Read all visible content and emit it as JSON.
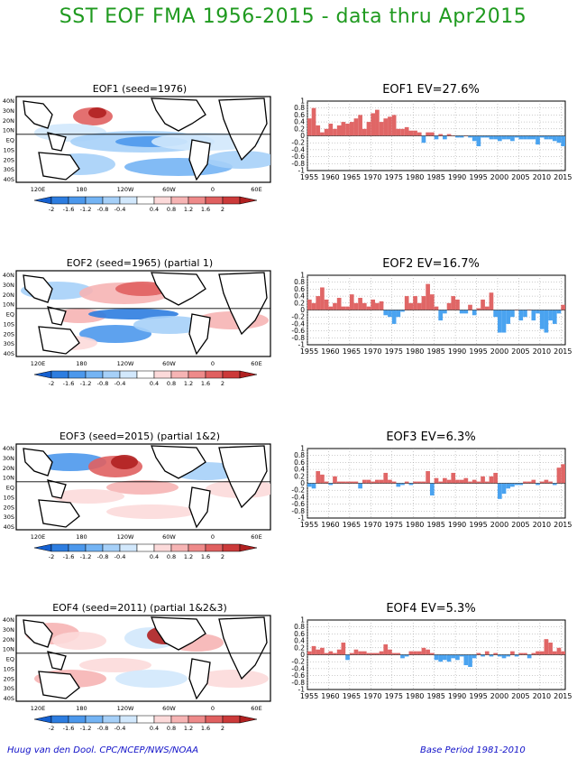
{
  "page": {
    "title": "SST EOF FMA 1956-2015 - data thru Apr2015",
    "footer_left": "Huug van den Dool. CPC/NCEP/NWS/NOAA",
    "footer_right": "Base Period 1981-2010",
    "title_color": "#1f9a1f",
    "footer_color": "#1010c8"
  },
  "maps": [
    {
      "title": "EOF1   (seed=1976)"
    },
    {
      "title": "EOF2   (seed=1965)  (partial  1)"
    },
    {
      "title": "EOF3   (seed=2015)  (partial  1&2)"
    },
    {
      "title": "EOF4   (seed=2011)  (partial  1&2&3)"
    }
  ],
  "map_axes": {
    "lat_labels": [
      "40N",
      "30N",
      "20N",
      "10N",
      "EQ",
      "10S",
      "20S",
      "30S",
      "40S"
    ],
    "lon_labels": [
      "120E",
      "180",
      "120W",
      "60W",
      "0",
      "60E"
    ]
  },
  "colorbar": {
    "labels": [
      "-2",
      "-1.6",
      "-1.2",
      "-0.8",
      "-0.4",
      "0.4",
      "0.8",
      "1.2",
      "1.6",
      "2"
    ],
    "colors": [
      "#1560d0",
      "#2d7de0",
      "#4c98ec",
      "#74b4f4",
      "#a6d0f8",
      "#d2e8fc",
      "#ffffff",
      "#fcdada",
      "#f6b4b4",
      "#ee8a8a",
      "#e06060",
      "#cc3a3a",
      "#b02020"
    ]
  },
  "chart_data": [
    {
      "type": "bar",
      "title": "EOF1   EV=27.6%",
      "x": [
        1955,
        1956,
        1957,
        1958,
        1959,
        1960,
        1961,
        1962,
        1963,
        1964,
        1965,
        1966,
        1967,
        1968,
        1969,
        1970,
        1971,
        1972,
        1973,
        1974,
        1975,
        1976,
        1977,
        1978,
        1979,
        1980,
        1981,
        1982,
        1983,
        1984,
        1985,
        1986,
        1987,
        1988,
        1989,
        1990,
        1991,
        1992,
        1993,
        1994,
        1995,
        1996,
        1997,
        1998,
        1999,
        2000,
        2001,
        2002,
        2003,
        2004,
        2005,
        2006,
        2007,
        2008,
        2009,
        2010,
        2011,
        2012,
        2013,
        2014,
        2015
      ],
      "values": [
        0.5,
        0.8,
        0.3,
        0.1,
        0.2,
        0.35,
        0.2,
        0.3,
        0.4,
        0.35,
        0.4,
        0.5,
        0.6,
        0.2,
        0.4,
        0.65,
        0.75,
        0.4,
        0.5,
        0.55,
        0.6,
        0.2,
        0.2,
        0.25,
        0.15,
        0.15,
        0.1,
        -0.2,
        0.1,
        0.1,
        -0.1,
        0.05,
        -0.1,
        0.05,
        0.0,
        -0.05,
        -0.05,
        0.0,
        -0.05,
        -0.15,
        -0.3,
        -0.05,
        -0.05,
        -0.1,
        -0.1,
        -0.15,
        -0.1,
        -0.1,
        -0.15,
        -0.05,
        -0.1,
        -0.1,
        -0.1,
        -0.1,
        -0.25,
        -0.05,
        -0.1,
        -0.1,
        -0.15,
        -0.2,
        -0.3
      ],
      "ylim": [
        -1,
        1
      ],
      "yticks": [
        "1",
        "0.8",
        "0.6",
        "0.4",
        "0.2",
        "0",
        "-0.2",
        "-0.4",
        "-0.6",
        "-0.8",
        "-1"
      ],
      "xticks": [
        "1955",
        "1960",
        "1965",
        "1970",
        "1975",
        "1980",
        "1985",
        "1990",
        "1995",
        "2000",
        "2005",
        "2010",
        "2015"
      ],
      "positive_color": "#e06666",
      "negative_color": "#4aa3f0",
      "grid": true
    },
    {
      "type": "bar",
      "title": "EOF2   EV=16.7%",
      "x": [
        1955,
        1956,
        1957,
        1958,
        1959,
        1960,
        1961,
        1962,
        1963,
        1964,
        1965,
        1966,
        1967,
        1968,
        1969,
        1970,
        1971,
        1972,
        1973,
        1974,
        1975,
        1976,
        1977,
        1978,
        1979,
        1980,
        1981,
        1982,
        1983,
        1984,
        1985,
        1986,
        1987,
        1988,
        1989,
        1990,
        1991,
        1992,
        1993,
        1994,
        1995,
        1996,
        1997,
        1998,
        1999,
        2000,
        2001,
        2002,
        2003,
        2004,
        2005,
        2006,
        2007,
        2008,
        2009,
        2010,
        2011,
        2012,
        2013,
        2014,
        2015
      ],
      "values": [
        0.3,
        0.2,
        0.4,
        0.65,
        0.3,
        0.1,
        0.2,
        0.35,
        0.1,
        0.1,
        0.45,
        0.2,
        0.35,
        0.2,
        0.1,
        0.3,
        0.2,
        0.25,
        -0.15,
        -0.2,
        -0.4,
        -0.2,
        -0.05,
        0.4,
        0.2,
        0.4,
        0.2,
        0.4,
        0.75,
        0.45,
        0.1,
        -0.3,
        -0.1,
        0.2,
        0.4,
        0.3,
        -0.1,
        -0.1,
        0.15,
        -0.15,
        0.05,
        0.3,
        0.1,
        0.5,
        -0.2,
        -0.65,
        -0.65,
        -0.4,
        -0.2,
        0.0,
        -0.3,
        -0.2,
        0.0,
        -0.3,
        -0.1,
        -0.55,
        -0.65,
        -0.3,
        -0.4,
        -0.1,
        0.15
      ],
      "ylim": [
        -1,
        1
      ],
      "yticks": [
        "1",
        "0.8",
        "0.6",
        "0.4",
        "0.2",
        "0",
        "-0.2",
        "-0.4",
        "-0.6",
        "-0.8",
        "-1"
      ],
      "xticks": [
        "1955",
        "1960",
        "1965",
        "1970",
        "1975",
        "1980",
        "1985",
        "1990",
        "1995",
        "2000",
        "2005",
        "2010",
        "2015"
      ],
      "positive_color": "#e06666",
      "negative_color": "#4aa3f0",
      "grid": true
    },
    {
      "type": "bar",
      "title": "EOF3   EV=6.3%",
      "x": [
        1955,
        1956,
        1957,
        1958,
        1959,
        1960,
        1961,
        1962,
        1963,
        1964,
        1965,
        1966,
        1967,
        1968,
        1969,
        1970,
        1971,
        1972,
        1973,
        1974,
        1975,
        1976,
        1977,
        1978,
        1979,
        1980,
        1981,
        1982,
        1983,
        1984,
        1985,
        1986,
        1987,
        1988,
        1989,
        1990,
        1991,
        1992,
        1993,
        1994,
        1995,
        1996,
        1997,
        1998,
        1999,
        2000,
        2001,
        2002,
        2003,
        2004,
        2005,
        2006,
        2007,
        2008,
        2009,
        2010,
        2011,
        2012,
        2013,
        2014,
        2015
      ],
      "values": [
        -0.1,
        -0.15,
        0.35,
        0.25,
        0.05,
        -0.05,
        0.2,
        0.05,
        0.05,
        0.05,
        0.05,
        0.05,
        -0.15,
        0.1,
        0.1,
        0.05,
        0.1,
        0.1,
        0.3,
        0.1,
        0.05,
        -0.1,
        -0.05,
        0.05,
        -0.05,
        0.05,
        0.05,
        0.05,
        0.35,
        -0.35,
        0.15,
        0.05,
        0.15,
        0.1,
        0.3,
        0.1,
        0.1,
        0.15,
        0.05,
        0.1,
        0.05,
        0.2,
        0.05,
        0.2,
        0.3,
        -0.45,
        -0.3,
        -0.15,
        -0.1,
        -0.05,
        -0.05,
        0.05,
        0.05,
        0.1,
        -0.05,
        0.05,
        0.1,
        0.05,
        -0.05,
        0.45,
        0.55
      ],
      "ylim": [
        -1,
        1
      ],
      "yticks": [
        "1",
        "0.8",
        "0.6",
        "0.4",
        "0.2",
        "0",
        "-0.2",
        "-0.4",
        "-0.6",
        "-0.8",
        "-1"
      ],
      "xticks": [
        "1955",
        "1960",
        "1965",
        "1970",
        "1975",
        "1980",
        "1985",
        "1990",
        "1995",
        "2000",
        "2005",
        "2010",
        "2015"
      ],
      "positive_color": "#e06666",
      "negative_color": "#4aa3f0",
      "grid": true
    },
    {
      "type": "bar",
      "title": "EOF4   EV=5.3%",
      "x": [
        1955,
        1956,
        1957,
        1958,
        1959,
        1960,
        1961,
        1962,
        1963,
        1964,
        1965,
        1966,
        1967,
        1968,
        1969,
        1970,
        1971,
        1972,
        1973,
        1974,
        1975,
        1976,
        1977,
        1978,
        1979,
        1980,
        1981,
        1982,
        1983,
        1984,
        1985,
        1986,
        1987,
        1988,
        1989,
        1990,
        1991,
        1992,
        1993,
        1994,
        1995,
        1996,
        1997,
        1998,
        1999,
        2000,
        2001,
        2002,
        2003,
        2004,
        2005,
        2006,
        2007,
        2008,
        2009,
        2010,
        2011,
        2012,
        2013,
        2014,
        2015
      ],
      "values": [
        0.1,
        0.25,
        0.15,
        0.2,
        0.05,
        0.1,
        0.05,
        0.15,
        0.35,
        -0.15,
        0.05,
        0.15,
        0.1,
        0.1,
        0.05,
        0.05,
        0.05,
        0.1,
        0.3,
        0.15,
        0.05,
        0.05,
        -0.1,
        -0.05,
        0.1,
        0.1,
        0.1,
        0.2,
        0.15,
        0.05,
        -0.15,
        -0.2,
        -0.15,
        -0.2,
        -0.1,
        -0.15,
        -0.05,
        -0.3,
        -0.35,
        -0.1,
        0.05,
        -0.05,
        0.1,
        -0.05,
        0.05,
        -0.05,
        -0.1,
        -0.05,
        0.1,
        -0.05,
        0.05,
        0.05,
        -0.1,
        0.05,
        0.1,
        0.1,
        0.45,
        0.35,
        0.1,
        0.2,
        0.1
      ],
      "ylim": [
        -1,
        1
      ],
      "yticks": [
        "1",
        "0.8",
        "0.6",
        "0.4",
        "0.2",
        "0",
        "-0.2",
        "-0.4",
        "-0.6",
        "-0.8",
        "-1"
      ],
      "xticks": [
        "1955",
        "1960",
        "1965",
        "1970",
        "1975",
        "1980",
        "1985",
        "1990",
        "1995",
        "2000",
        "2005",
        "2010",
        "2015"
      ],
      "positive_color": "#e06666",
      "negative_color": "#4aa3f0",
      "grid": true
    }
  ]
}
